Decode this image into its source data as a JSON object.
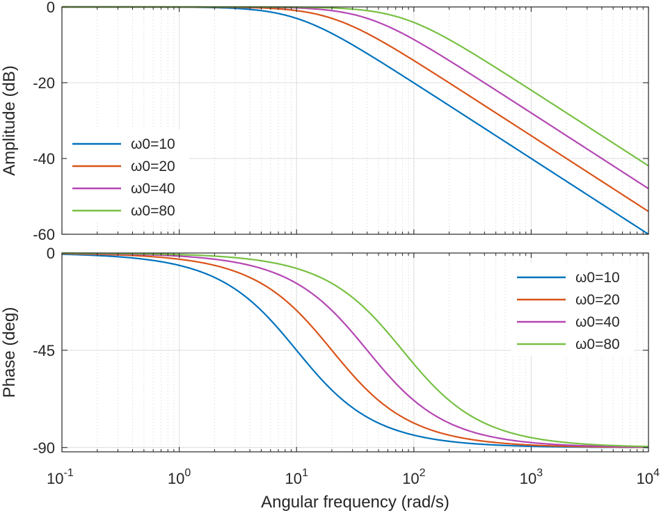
{
  "chart_data": [
    {
      "type": "line",
      "name": "amplitude",
      "xscale": "log",
      "xlim": [
        0.1,
        10000
      ],
      "ylim": [
        -60,
        0
      ],
      "yticks": [
        0,
        -20,
        -40,
        -60
      ],
      "ytick_labels": [
        "0",
        "-20",
        "-40",
        "-60"
      ],
      "ylabel": "Amplitude (dB)",
      "xlabel": "",
      "grid": true,
      "legend": {
        "placement": "middle-left",
        "entries": [
          "ω0=10",
          "ω0=20",
          "ω0=40",
          "ω0=80"
        ]
      },
      "x": [
        0.1,
        1,
        3,
        10,
        30,
        100,
        300,
        1000,
        3000,
        10000
      ],
      "series": [
        {
          "name": "ω0=10",
          "color": "#0072BD",
          "omega0": 10,
          "values": [
            0,
            -0.04,
            -0.4,
            -3.0,
            -10.0,
            -20.0,
            -29.5,
            -40.0,
            -49.5,
            -60.0
          ]
        },
        {
          "name": "ω0=20",
          "color": "#D95319",
          "omega0": 20,
          "values": [
            0,
            -0.01,
            -0.1,
            -1.0,
            -5.1,
            -14.1,
            -23.5,
            -34.0,
            -43.5,
            -54.0
          ]
        },
        {
          "name": "ω0=40",
          "color": "#B446B3",
          "omega0": 40,
          "values": [
            0,
            0,
            -0.02,
            -0.3,
            -1.9,
            -8.6,
            -17.6,
            -28.0,
            -37.5,
            -48.0
          ]
        },
        {
          "name": "ω0=80",
          "color": "#77C043",
          "omega0": 80,
          "values": [
            0,
            0,
            -0.01,
            -0.1,
            -0.6,
            -4.1,
            -11.7,
            -22.0,
            -31.5,
            -42.0
          ]
        }
      ]
    },
    {
      "type": "line",
      "name": "phase",
      "xscale": "log",
      "xlim": [
        0.1,
        10000
      ],
      "ylim": [
        -92,
        0
      ],
      "yticks": [
        0,
        -45,
        -90
      ],
      "ytick_labels": [
        "0",
        "-45",
        "-90"
      ],
      "ylabel": "Phase (deg)",
      "xlabel": "Angular frequency  (rad/s)",
      "xtick_labels": [
        {
          "base": "10",
          "exp": "-1"
        },
        {
          "base": "10",
          "exp": "0"
        },
        {
          "base": "10",
          "exp": "1"
        },
        {
          "base": "10",
          "exp": "2"
        },
        {
          "base": "10",
          "exp": "3"
        },
        {
          "base": "10",
          "exp": "4"
        }
      ],
      "grid": true,
      "legend": {
        "placement": "top-right",
        "entries": [
          "ω0=10",
          "ω0=20",
          "ω0=40",
          "ω0=80"
        ]
      },
      "x": [
        0.1,
        1,
        3,
        10,
        30,
        100,
        300,
        1000,
        3000,
        10000
      ],
      "series": [
        {
          "name": "ω0=10",
          "color": "#0072BD",
          "omega0": 10,
          "values": [
            -0.6,
            -5.7,
            -16.7,
            -45.0,
            -71.6,
            -84.3,
            -88.1,
            -89.4,
            -89.8,
            -89.9
          ]
        },
        {
          "name": "ω0=20",
          "color": "#D95319",
          "omega0": 20,
          "values": [
            -0.3,
            -2.9,
            -8.5,
            -26.6,
            -56.3,
            -78.7,
            -86.2,
            -88.9,
            -89.6,
            -89.9
          ]
        },
        {
          "name": "ω0=40",
          "color": "#B446B3",
          "omega0": 40,
          "values": [
            -0.1,
            -1.4,
            -4.3,
            -14.0,
            -36.9,
            -68.2,
            -82.4,
            -87.7,
            -89.2,
            -89.8
          ]
        },
        {
          "name": "ω0=80",
          "color": "#77C043",
          "omega0": 80,
          "values": [
            -0.1,
            -0.7,
            -2.1,
            -7.1,
            -20.6,
            -51.3,
            -75.1,
            -85.4,
            -88.5,
            -89.5
          ]
        }
      ]
    }
  ]
}
